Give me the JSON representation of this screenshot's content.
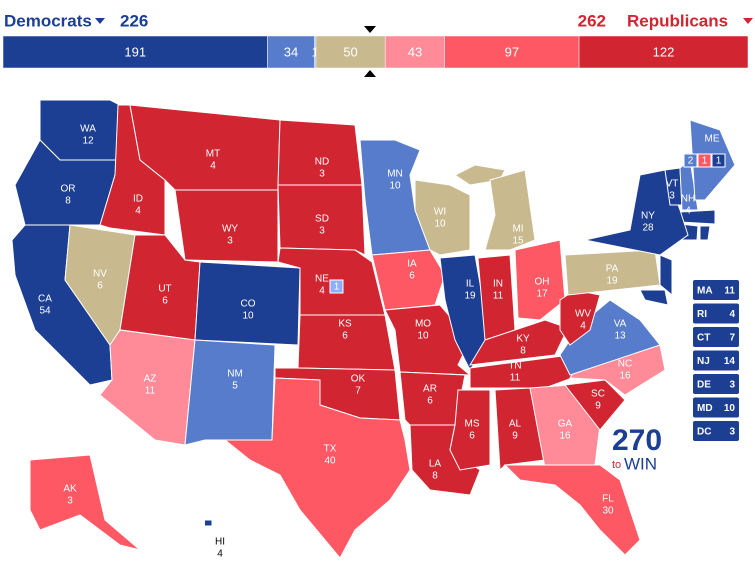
{
  "header": {
    "dem_label": "Democrats",
    "dem_total": 226,
    "rep_label": "Republicans",
    "rep_total": 262
  },
  "colors": {
    "solid_d": "#1c3f94",
    "likely_d": "#577ccc",
    "lean_d": "#8aafff",
    "tossup": "#c9b98f",
    "lean_r": "#ff8b98",
    "likely_r": "#ff5865",
    "solid_r": "#d22532"
  },
  "bar": [
    {
      "value": 191,
      "rating": "solid_d"
    },
    {
      "value": 34,
      "rating": "likely_d"
    },
    {
      "value": 1,
      "rating": "lean_d"
    },
    {
      "value": 50,
      "rating": "tossup"
    },
    {
      "value": 43,
      "rating": "lean_r"
    },
    {
      "value": 97,
      "rating": "likely_r"
    },
    {
      "value": 122,
      "rating": "solid_r"
    }
  ],
  "states": [
    {
      "abbr": "WA",
      "votes": 12,
      "rating": "solid_d"
    },
    {
      "abbr": "OR",
      "votes": 8,
      "rating": "solid_d"
    },
    {
      "abbr": "CA",
      "votes": 54,
      "rating": "solid_d"
    },
    {
      "abbr": "NV",
      "votes": 6,
      "rating": "tossup"
    },
    {
      "abbr": "ID",
      "votes": 4,
      "rating": "solid_r"
    },
    {
      "abbr": "MT",
      "votes": 4,
      "rating": "solid_r"
    },
    {
      "abbr": "WY",
      "votes": 3,
      "rating": "solid_r"
    },
    {
      "abbr": "UT",
      "votes": 6,
      "rating": "solid_r"
    },
    {
      "abbr": "CO",
      "votes": 10,
      "rating": "solid_d"
    },
    {
      "abbr": "AZ",
      "votes": 11,
      "rating": "lean_r"
    },
    {
      "abbr": "NM",
      "votes": 5,
      "rating": "likely_d"
    },
    {
      "abbr": "ND",
      "votes": 3,
      "rating": "solid_r"
    },
    {
      "abbr": "SD",
      "votes": 3,
      "rating": "solid_r"
    },
    {
      "abbr": "NE",
      "votes": 4,
      "rating": "solid_r"
    },
    {
      "abbr": "KS",
      "votes": 6,
      "rating": "solid_r"
    },
    {
      "abbr": "OK",
      "votes": 7,
      "rating": "solid_r"
    },
    {
      "abbr": "TX",
      "votes": 40,
      "rating": "likely_r"
    },
    {
      "abbr": "MN",
      "votes": 10,
      "rating": "likely_d"
    },
    {
      "abbr": "IA",
      "votes": 6,
      "rating": "likely_r"
    },
    {
      "abbr": "MO",
      "votes": 10,
      "rating": "solid_r"
    },
    {
      "abbr": "AR",
      "votes": 6,
      "rating": "solid_r"
    },
    {
      "abbr": "LA",
      "votes": 8,
      "rating": "solid_r"
    },
    {
      "abbr": "WI",
      "votes": 10,
      "rating": "tossup"
    },
    {
      "abbr": "IL",
      "votes": 19,
      "rating": "solid_d"
    },
    {
      "abbr": "MI",
      "votes": 15,
      "rating": "tossup"
    },
    {
      "abbr": "IN",
      "votes": 11,
      "rating": "solid_r"
    },
    {
      "abbr": "OH",
      "votes": 17,
      "rating": "likely_r"
    },
    {
      "abbr": "KY",
      "votes": 8,
      "rating": "solid_r"
    },
    {
      "abbr": "TN",
      "votes": 11,
      "rating": "solid_r"
    },
    {
      "abbr": "MS",
      "votes": 6,
      "rating": "solid_r"
    },
    {
      "abbr": "AL",
      "votes": 9,
      "rating": "solid_r"
    },
    {
      "abbr": "GA",
      "votes": 16,
      "rating": "lean_r"
    },
    {
      "abbr": "FL",
      "votes": 30,
      "rating": "likely_r"
    },
    {
      "abbr": "SC",
      "votes": 9,
      "rating": "solid_r"
    },
    {
      "abbr": "NC",
      "votes": 16,
      "rating": "lean_r"
    },
    {
      "abbr": "VA",
      "votes": 13,
      "rating": "likely_d"
    },
    {
      "abbr": "WV",
      "votes": 4,
      "rating": "solid_r"
    },
    {
      "abbr": "PA",
      "votes": 19,
      "rating": "tossup"
    },
    {
      "abbr": "NY",
      "votes": 28,
      "rating": "solid_d"
    },
    {
      "abbr": "VT",
      "votes": 3,
      "rating": "solid_d"
    },
    {
      "abbr": "NH",
      "votes": 4,
      "rating": "likely_d"
    },
    {
      "abbr": "ME",
      "votes": null,
      "rating": "likely_d"
    },
    {
      "abbr": "AK",
      "votes": 3,
      "rating": "likely_r"
    },
    {
      "abbr": "HI",
      "votes": 4,
      "rating": "solid_d"
    }
  ],
  "maine_districts": [
    {
      "value": 2,
      "rating": "likely_d"
    },
    {
      "value": 1,
      "rating": "likely_r"
    },
    {
      "value": 1,
      "rating": "solid_d"
    }
  ],
  "nebraska_district": {
    "value": 1,
    "rating": "lean_d"
  },
  "small_states": [
    {
      "abbr": "MA",
      "votes": 11,
      "rating": "solid_d"
    },
    {
      "abbr": "RI",
      "votes": 4,
      "rating": "solid_d"
    },
    {
      "abbr": "CT",
      "votes": 7,
      "rating": "solid_d"
    },
    {
      "abbr": "NJ",
      "votes": 14,
      "rating": "solid_d"
    },
    {
      "abbr": "DE",
      "votes": 3,
      "rating": "solid_d"
    },
    {
      "abbr": "MD",
      "votes": 10,
      "rating": "solid_d"
    },
    {
      "abbr": "DC",
      "votes": 3,
      "rating": "solid_d"
    }
  ],
  "logo": {
    "number": 270,
    "to": "to",
    "win": "WIN"
  }
}
